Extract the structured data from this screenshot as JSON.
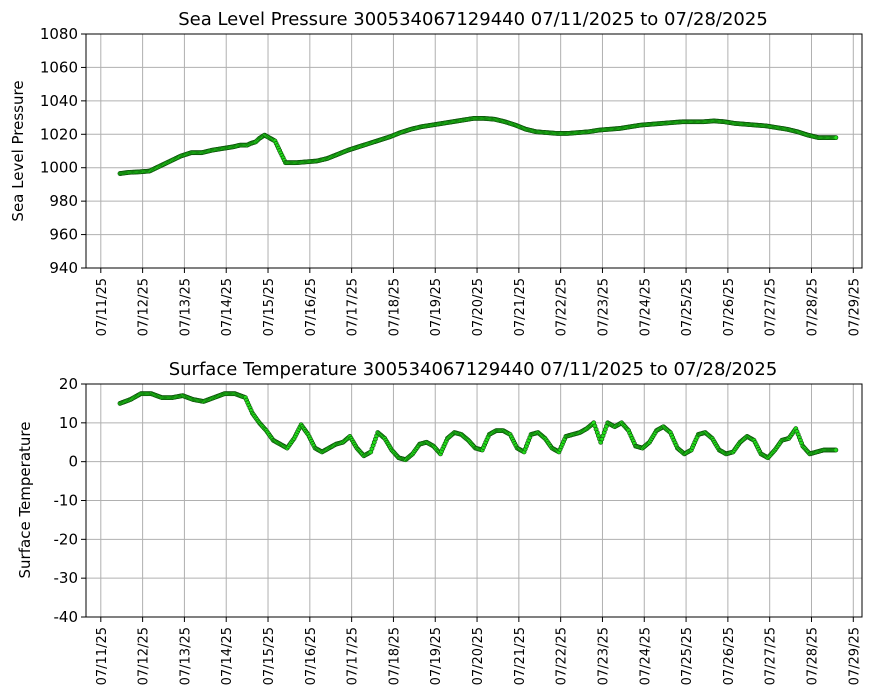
{
  "chart_data": [
    {
      "type": "scatter",
      "title": "Sea Level Pressure 300534067129440  07/11/2025 to 07/28/2025",
      "xlabel": "",
      "ylabel": "Sea Level Pressure",
      "ylim": [
        940,
        1080
      ],
      "yticks": [
        940,
        960,
        980,
        1000,
        1020,
        1040,
        1060,
        1080
      ],
      "xlim": [
        "07/10/2025 15:30",
        "07/29/2025 05:00"
      ],
      "xticks": [
        "07/11/25",
        "07/12/25",
        "07/13/25",
        "07/14/25",
        "07/15/25",
        "07/16/25",
        "07/17/25",
        "07/18/25",
        "07/19/25",
        "07/20/25",
        "07/21/25",
        "07/22/25",
        "07/23/25",
        "07/24/25",
        "07/25/25",
        "07/26/25",
        "07/27/25",
        "07/28/25",
        "07/29/25"
      ],
      "grid": true,
      "marker_color": "#22e01a",
      "series": [
        {
          "x": [
            "07/11/2025 11:00",
            "07/11/2025 16:00",
            "07/11/2025 22:00",
            "07/12/2025 04:00",
            "07/12/2025 10:00",
            "07/12/2025 16:00",
            "07/12/2025 22:00",
            "07/13/2025 04:00",
            "07/13/2025 10:00",
            "07/13/2025 16:00",
            "07/13/2025 22:00",
            "07/14/2025 04:00",
            "07/14/2025 08:00",
            "07/14/2025 12:00",
            "07/14/2025 14:00",
            "07/14/2025 17:00",
            "07/14/2025 19:00",
            "07/14/2025 22:00",
            "07/15/2025 04:00",
            "07/15/2025 10:00",
            "07/15/2025 16:00",
            "07/15/2025 22:00",
            "07/16/2025 04:00",
            "07/16/2025 10:00",
            "07/16/2025 16:00",
            "07/16/2025 22:00",
            "07/17/2025 04:00",
            "07/17/2025 10:00",
            "07/17/2025 16:00",
            "07/17/2025 22:00",
            "07/18/2025 04:00",
            "07/18/2025 10:00",
            "07/18/2025 16:00",
            "07/18/2025 22:00",
            "07/19/2025 04:00",
            "07/19/2025 10:00",
            "07/19/2025 16:00",
            "07/19/2025 22:00",
            "07/20/2025 04:00",
            "07/20/2025 10:00",
            "07/20/2025 16:00",
            "07/20/2025 22:00",
            "07/21/2025 04:00",
            "07/21/2025 10:00",
            "07/21/2025 16:00",
            "07/21/2025 22:00",
            "07/22/2025 04:00",
            "07/22/2025 10:00",
            "07/22/2025 16:00",
            "07/22/2025 22:00",
            "07/23/2025 04:00",
            "07/23/2025 10:00",
            "07/23/2025 16:00",
            "07/23/2025 22:00",
            "07/24/2025 04:00",
            "07/24/2025 10:00",
            "07/24/2025 16:00",
            "07/24/2025 22:00",
            "07/25/2025 04:00",
            "07/25/2025 10:00",
            "07/25/2025 16:00",
            "07/25/2025 22:00",
            "07/26/2025 04:00",
            "07/26/2025 10:00",
            "07/26/2025 16:00",
            "07/26/2025 22:00",
            "07/27/2025 04:00",
            "07/27/2025 10:00",
            "07/27/2025 16:00",
            "07/27/2025 22:00",
            "07/28/2025 04:00",
            "07/28/2025 10:00",
            "07/28/2025 14:00"
          ],
          "y": [
            996.5,
            997.2,
            997.5,
            998.0,
            1001.0,
            1004.0,
            1007.0,
            1009.0,
            1009.0,
            1010.5,
            1011.5,
            1012.5,
            1013.5,
            1013.5,
            1014.5,
            1015.5,
            1017.5,
            1019.5,
            1016.0,
            1003.0,
            1003.0,
            1003.5,
            1004.0,
            1005.5,
            1008.0,
            1010.5,
            1012.5,
            1014.5,
            1016.5,
            1018.5,
            1021.0,
            1023.0,
            1024.5,
            1025.5,
            1026.5,
            1027.5,
            1028.5,
            1029.5,
            1029.5,
            1029.0,
            1027.5,
            1025.5,
            1023.0,
            1021.5,
            1021.0,
            1020.5,
            1020.5,
            1021.0,
            1021.5,
            1022.5,
            1023.0,
            1023.5,
            1024.5,
            1025.5,
            1026.0,
            1026.5,
            1027.0,
            1027.5,
            1027.5,
            1027.5,
            1028.0,
            1027.5,
            1026.5,
            1026.0,
            1025.5,
            1025.0,
            1024.0,
            1023.0,
            1021.5,
            1019.5,
            1018.0,
            1018.0,
            1018.0
          ]
        }
      ]
    },
    {
      "type": "scatter",
      "title": "Surface Temperature 300534067129440  07/11/2025 to 07/28/2025",
      "xlabel": "",
      "ylabel": "Surface Temperature",
      "ylim": [
        -40,
        20
      ],
      "yticks": [
        -40,
        -30,
        -20,
        -10,
        0,
        10,
        20
      ],
      "xlim": [
        "07/10/2025 15:30",
        "07/29/2025 05:00"
      ],
      "xticks": [
        "07/11/25",
        "07/12/25",
        "07/13/25",
        "07/14/25",
        "07/15/25",
        "07/16/25",
        "07/17/25",
        "07/18/25",
        "07/19/25",
        "07/20/25",
        "07/21/25",
        "07/22/25",
        "07/23/25",
        "07/24/25",
        "07/25/25",
        "07/26/25",
        "07/27/25",
        "07/28/25",
        "07/29/25"
      ],
      "grid": true,
      "marker_color": "#22e01a",
      "series": [
        {
          "x": [
            "07/11/2025 11:00",
            "07/11/2025 17:00",
            "07/11/2025 23:00",
            "07/12/2025 05:00",
            "07/12/2025 11:00",
            "07/12/2025 17:00",
            "07/12/2025 23:00",
            "07/13/2025 05:00",
            "07/13/2025 11:00",
            "07/13/2025 17:00",
            "07/13/2025 23:00",
            "07/14/2025 05:00",
            "07/14/2025 11:00",
            "07/14/2025 15:00",
            "07/14/2025 19:00",
            "07/14/2025 23:00",
            "07/15/2025 03:00",
            "07/15/2025 07:00",
            "07/15/2025 11:00",
            "07/15/2025 15:00",
            "07/15/2025 19:00",
            "07/15/2025 23:00",
            "07/16/2025 03:00",
            "07/16/2025 07:00",
            "07/16/2025 11:00",
            "07/16/2025 15:00",
            "07/16/2025 19:00",
            "07/16/2025 23:00",
            "07/17/2025 03:00",
            "07/17/2025 07:00",
            "07/17/2025 11:00",
            "07/17/2025 15:00",
            "07/17/2025 19:00",
            "07/17/2025 23:00",
            "07/18/2025 03:00",
            "07/18/2025 07:00",
            "07/18/2025 11:00",
            "07/18/2025 15:00",
            "07/18/2025 19:00",
            "07/18/2025 23:00",
            "07/19/2025 03:00",
            "07/19/2025 07:00",
            "07/19/2025 11:00",
            "07/19/2025 15:00",
            "07/19/2025 19:00",
            "07/19/2025 23:00",
            "07/20/2025 03:00",
            "07/20/2025 07:00",
            "07/20/2025 11:00",
            "07/20/2025 15:00",
            "07/20/2025 19:00",
            "07/20/2025 23:00",
            "07/21/2025 03:00",
            "07/21/2025 07:00",
            "07/21/2025 11:00",
            "07/21/2025 15:00",
            "07/21/2025 19:00",
            "07/21/2025 23:00",
            "07/22/2025 03:00",
            "07/22/2025 07:00",
            "07/22/2025 11:00",
            "07/22/2025 15:00",
            "07/22/2025 19:00",
            "07/22/2025 23:00",
            "07/23/2025 03:00",
            "07/23/2025 07:00",
            "07/23/2025 11:00",
            "07/23/2025 15:00",
            "07/23/2025 19:00",
            "07/23/2025 23:00",
            "07/24/2025 03:00",
            "07/24/2025 07:00",
            "07/24/2025 11:00",
            "07/24/2025 15:00",
            "07/24/2025 19:00",
            "07/24/2025 23:00",
            "07/25/2025 03:00",
            "07/25/2025 07:00",
            "07/25/2025 11:00",
            "07/25/2025 15:00",
            "07/25/2025 19:00",
            "07/25/2025 23:00",
            "07/26/2025 03:00",
            "07/26/2025 07:00",
            "07/26/2025 11:00",
            "07/26/2025 15:00",
            "07/26/2025 19:00",
            "07/26/2025 23:00",
            "07/27/2025 03:00",
            "07/27/2025 07:00",
            "07/27/2025 11:00",
            "07/27/2025 15:00",
            "07/27/2025 19:00",
            "07/27/2025 23:00",
            "07/28/2025 03:00",
            "07/28/2025 07:00",
            "07/28/2025 11:00",
            "07/28/2025 14:00"
          ],
          "y": [
            15.0,
            16.0,
            17.5,
            17.5,
            16.5,
            16.5,
            17.0,
            16.0,
            15.5,
            16.5,
            17.5,
            17.5,
            16.5,
            12.5,
            10.0,
            8.0,
            5.5,
            4.5,
            3.5,
            6.0,
            9.5,
            7.0,
            3.5,
            2.5,
            3.5,
            4.5,
            5.0,
            6.5,
            3.5,
            1.5,
            2.5,
            7.5,
            6.0,
            3.0,
            1.0,
            0.5,
            2.0,
            4.5,
            5.0,
            4.0,
            2.0,
            6.0,
            7.5,
            7.0,
            5.5,
            3.5,
            3.0,
            7.0,
            8.0,
            8.0,
            7.0,
            3.5,
            2.5,
            7.0,
            7.5,
            6.0,
            3.5,
            2.5,
            6.5,
            7.0,
            7.5,
            8.5,
            10.0,
            5.0,
            10.0,
            9.0,
            10.0,
            8.0,
            4.0,
            3.5,
            5.0,
            8.0,
            9.0,
            7.5,
            3.5,
            2.0,
            3.0,
            7.0,
            7.5,
            6.0,
            3.0,
            2.0,
            2.5,
            5.0,
            6.5,
            5.5,
            2.0,
            1.0,
            3.0,
            5.5,
            6.0,
            8.5,
            4.0,
            2.0,
            2.5,
            3.0,
            3.0,
            3.0
          ]
        }
      ]
    }
  ]
}
